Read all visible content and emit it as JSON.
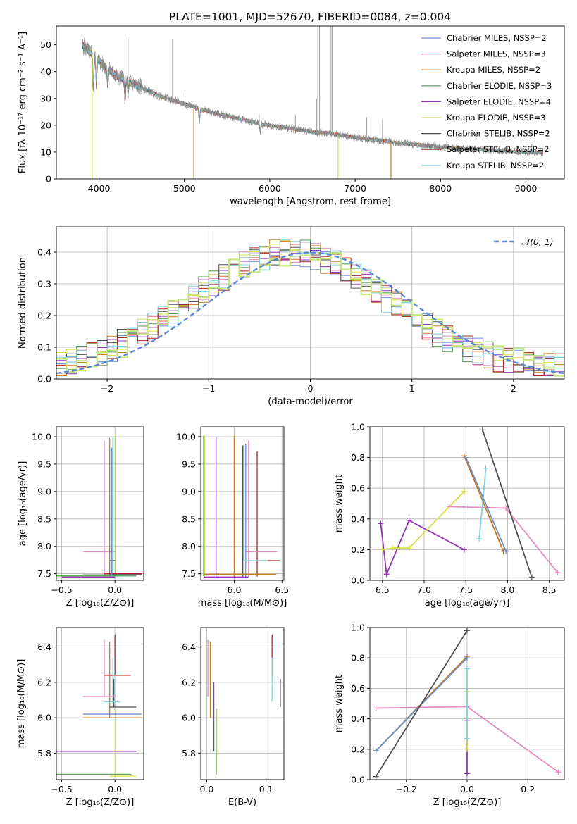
{
  "figure_title": "PLATE=1001, MJD=52670, FIBERID=0084, z=0.004",
  "series_colors": [
    "#6a8fd0",
    "#e58cbf",
    "#c87a1e",
    "#4f9a4f",
    "#9233b4",
    "#d6e04a",
    "#505050",
    "#b22222",
    "#7fd3e0"
  ],
  "chart_data": [
    {
      "id": "spectrum",
      "type": "line",
      "xlabel": "wavelength [Angstrom, rest frame]",
      "ylabel": "Flux [fλ 10⁻¹⁷ erg cm⁻² s⁻¹ A⁻¹]",
      "xlim": [
        3500,
        9450
      ],
      "ylim": [
        0,
        57
      ],
      "xticks": [
        4000,
        5000,
        6000,
        7000,
        8000,
        9000
      ],
      "yticks": [
        0,
        10,
        20,
        30,
        40,
        50
      ],
      "grid": false,
      "legend_position": "upper right",
      "legend": [
        "Chabrier MILES, N_SSP=2",
        "Salpeter MILES, N_SSP=3",
        "Kroupa MILES, N_SSP=2",
        "Chabrier ELODIE, N_SSP=3",
        "Salpeter ELODIE, N_SSP=4",
        "Kroupa ELODIE, N_SSP=3",
        "Chabrier STELIB, N_SSP=2",
        "Salpeter STELIB, N_SSP=2",
        "Kroupa STELIB, N_SSP=2"
      ],
      "observed_color": "#8c8c8c",
      "continuum": {
        "x": [
          3800,
          3900,
          4000,
          4100,
          4200,
          4300,
          4500,
          4700,
          4900,
          5100,
          5300,
          5500,
          5700,
          5900,
          6100,
          6300,
          6500,
          6700,
          6900,
          7100,
          7300,
          7500,
          7800,
          8100,
          8400,
          8700,
          9000,
          9200
        ],
        "y": [
          50,
          47,
          44,
          41,
          38.5,
          37,
          34,
          31,
          29,
          27,
          25,
          23.5,
          22,
          20.5,
          19.5,
          18.5,
          17.5,
          17,
          16,
          15,
          14.3,
          13.5,
          12.5,
          11.5,
          11,
          10.5,
          10,
          9.8
        ]
      },
      "emission_lines": [
        [
          4340,
          53
        ],
        [
          4861,
          52
        ],
        [
          4959,
          27
        ],
        [
          5007,
          32
        ],
        [
          5876,
          24
        ],
        [
          6300,
          24
        ],
        [
          6548,
          30
        ],
        [
          6563,
          57
        ],
        [
          6583,
          57
        ],
        [
          6717,
          57
        ],
        [
          6731,
          57
        ],
        [
          7135,
          23
        ],
        [
          7320,
          22
        ],
        [
          9069,
          13
        ]
      ],
      "model_dropouts": [
        [
          3920,
          "#d6e04a"
        ],
        [
          5110,
          "#c87a1e"
        ],
        [
          6800,
          "#d6e04a"
        ],
        [
          7420,
          "#c87a1e"
        ]
      ]
    },
    {
      "id": "residuals",
      "type": "line",
      "xlabel": "(data-model)/error",
      "ylabel": "Normed distribution",
      "xlim": [
        -2.5,
        2.5
      ],
      "ylim": [
        0,
        0.48
      ],
      "xticks": [
        -2,
        -1,
        0,
        1,
        2
      ],
      "yticks": [
        0.0,
        0.1,
        0.2,
        0.3,
        0.4
      ],
      "grid": true,
      "legend_position": "upper right",
      "legend": [
        "𝒩(0, 1)"
      ],
      "reference_curve": {
        "mean": 0,
        "sigma": 1,
        "color": "#5b86d6",
        "style": "dashed"
      },
      "histogram": {
        "bin_width": 0.1,
        "x_start": -2.5,
        "highlight_color": "#c5e67a"
      }
    },
    {
      "id": "age_vs_Z",
      "type": "scatter",
      "xlabel": "Z [log₁₀(Z/Z⊙)]",
      "ylabel": "age  [log₁₀(age/yr)]",
      "xlim": [
        -0.55,
        0.27
      ],
      "ylim": [
        7.38,
        10.18
      ],
      "xticks": [
        -0.5,
        0.0
      ],
      "yticks": [
        7.5,
        8.0,
        8.5,
        9.0,
        9.5,
        10.0
      ],
      "grid": true,
      "segments": [
        {
          "c": 1,
          "x": [
            -0.1,
            -0.1
          ],
          "y": [
            7.45,
            9.93
          ]
        },
        {
          "c": 1,
          "x": [
            -0.3,
            0.0
          ],
          "y": [
            7.9,
            7.9
          ]
        },
        {
          "c": 2,
          "x": [
            -0.05,
            -0.05
          ],
          "y": [
            7.45,
            9.98
          ]
        },
        {
          "c": 8,
          "x": [
            -0.02,
            -0.02
          ],
          "y": [
            7.45,
            10.0
          ]
        },
        {
          "c": 7,
          "x": [
            0.0,
            0.0
          ],
          "y": [
            7.45,
            10.02
          ]
        },
        {
          "c": 5,
          "x": [
            0.0,
            0.0
          ],
          "y": [
            7.45,
            10.05
          ]
        },
        {
          "c": 0,
          "x": [
            -0.05,
            0.25
          ],
          "y": [
            7.49,
            7.49
          ]
        },
        {
          "c": 3,
          "x": [
            -0.55,
            0.2
          ],
          "y": [
            7.46,
            7.46
          ]
        },
        {
          "c": 4,
          "x": [
            -0.5,
            0.0
          ],
          "y": [
            7.44,
            7.44
          ]
        },
        {
          "c": 6,
          "x": [
            -0.3,
            0.25
          ],
          "y": [
            7.48,
            7.48
          ]
        },
        {
          "c": 7,
          "x": [
            -0.1,
            0.25
          ],
          "y": [
            7.5,
            7.5
          ]
        },
        {
          "c": 8,
          "x": [
            -0.05,
            0.0
          ],
          "y": [
            7.74,
            7.74
          ]
        },
        {
          "c": 6,
          "x": [
            -0.05,
            0.0
          ],
          "y": [
            7.74,
            7.74
          ]
        },
        {
          "c": 8,
          "x": [
            -0.02,
            -0.02
          ],
          "y": [
            7.75,
            9.85
          ]
        },
        {
          "c": 0,
          "x": [
            -0.03,
            -0.03
          ],
          "y": [
            7.45,
            9.8
          ]
        }
      ]
    },
    {
      "id": "age_vs_mass",
      "type": "scatter",
      "xlabel": "mass [log₁₀(M/M⊙)]",
      "ylabel": "",
      "xlim": [
        5.65,
        6.52
      ],
      "ylim": [
        7.38,
        10.18
      ],
      "xticks": [
        6.0,
        6.5
      ],
      "yticks": [
        7.5,
        8.0,
        8.5,
        9.0,
        9.5,
        10.0
      ],
      "grid": true,
      "segments": [
        {
          "c": 4,
          "x": [
            5.81,
            5.81
          ],
          "y": [
            7.45,
            10.0
          ]
        },
        {
          "c": 3,
          "x": [
            5.68,
            5.68
          ],
          "y": [
            7.45,
            10.02
          ]
        },
        {
          "c": 5,
          "x": [
            5.69,
            5.69
          ],
          "y": [
            7.45,
            10.02
          ]
        },
        {
          "c": 2,
          "x": [
            6.0,
            6.0
          ],
          "y": [
            7.45,
            10.02
          ]
        },
        {
          "c": 6,
          "x": [
            6.09,
            6.09
          ],
          "y": [
            7.45,
            9.84
          ]
        },
        {
          "c": 0,
          "x": [
            6.12,
            6.12
          ],
          "y": [
            7.45,
            9.87
          ]
        },
        {
          "c": 1,
          "x": [
            6.15,
            6.15
          ],
          "y": [
            7.45,
            9.93
          ]
        },
        {
          "c": 7,
          "x": [
            6.24,
            6.24
          ],
          "y": [
            7.45,
            9.73
          ]
        },
        {
          "c": 8,
          "x": [
            6.1,
            6.1
          ],
          "y": [
            7.74,
            9.85
          ]
        },
        {
          "c": 1,
          "x": [
            6.12,
            6.45
          ],
          "y": [
            7.9,
            7.9
          ]
        },
        {
          "c": 7,
          "x": [
            6.24,
            6.48
          ],
          "y": [
            7.74,
            7.74
          ]
        },
        {
          "c": 2,
          "x": [
            5.68,
            6.44
          ],
          "y": [
            7.49,
            7.49
          ]
        },
        {
          "c": 4,
          "x": [
            5.68,
            6.15
          ],
          "y": [
            7.44,
            7.44
          ]
        },
        {
          "c": 8,
          "x": [
            6.1,
            6.35
          ],
          "y": [
            7.74,
            7.74
          ]
        }
      ]
    },
    {
      "id": "weight_vs_age",
      "type": "line",
      "xlabel": "age  [log₁₀(age/yr)]",
      "ylabel": "mass weight",
      "xlim": [
        6.35,
        8.68
      ],
      "ylim": [
        0.0,
        1.0
      ],
      "xticks": [
        6.5,
        7.0,
        7.5,
        8.0,
        8.5
      ],
      "yticks": [
        0.0,
        0.2,
        0.4,
        0.6,
        0.8,
        1.0
      ],
      "grid": true,
      "series": [
        {
          "c": 4,
          "x": [
            6.48,
            6.55,
            6.82,
            7.48
          ],
          "y": [
            0.37,
            0.04,
            0.39,
            0.2
          ]
        },
        {
          "c": 5,
          "x": [
            6.5,
            6.62,
            6.82,
            7.48
          ],
          "y": [
            0.2,
            0.21,
            0.21,
            0.58
          ]
        },
        {
          "c": 1,
          "x": [
            7.3,
            7.98,
            8.6
          ],
          "y": [
            0.48,
            0.47,
            0.05
          ]
        },
        {
          "c": 2,
          "x": [
            7.48,
            7.95
          ],
          "y": [
            0.81,
            0.19
          ]
        },
        {
          "c": 0,
          "x": [
            7.5,
            7.98
          ],
          "y": [
            0.8,
            0.19
          ]
        },
        {
          "c": 6,
          "x": [
            7.7,
            8.29
          ],
          "y": [
            0.98,
            0.02
          ]
        },
        {
          "c": 8,
          "x": [
            7.66,
            7.74
          ],
          "y": [
            0.27,
            0.73
          ]
        }
      ]
    },
    {
      "id": "mass_vs_Z",
      "type": "scatter",
      "xlabel": "Z [log₁₀(Z/Z⊙)]",
      "ylabel": "mass [log₁₀(M/M⊙)]",
      "xlim": [
        -0.55,
        0.27
      ],
      "ylim": [
        5.65,
        6.51
      ],
      "xticks": [
        -0.5,
        0.0
      ],
      "yticks": [
        5.8,
        6.0,
        6.2,
        6.4
      ],
      "grid": true,
      "segments": [
        {
          "c": 1,
          "x": [
            -0.1,
            -0.1
          ],
          "y": [
            6.12,
            6.44
          ]
        },
        {
          "c": 2,
          "x": [
            -0.05,
            -0.05
          ],
          "y": [
            6.0,
            6.43
          ]
        },
        {
          "c": 7,
          "x": [
            0.0,
            0.0
          ],
          "y": [
            6.24,
            6.47
          ]
        },
        {
          "c": 8,
          "x": [
            -0.02,
            -0.02
          ],
          "y": [
            6.08,
            6.34
          ]
        },
        {
          "c": 6,
          "x": [
            -0.01,
            -0.01
          ],
          "y": [
            6.06,
            6.22
          ]
        },
        {
          "c": 5,
          "x": [
            0.0,
            0.0
          ],
          "y": [
            5.67,
            6.05
          ]
        },
        {
          "c": 7,
          "x": [
            -0.1,
            0.15
          ],
          "y": [
            6.24,
            6.24
          ]
        },
        {
          "c": 1,
          "x": [
            -0.3,
            0.0
          ],
          "y": [
            6.12,
            6.12
          ]
        },
        {
          "c": 8,
          "x": [
            -0.1,
            0.05
          ],
          "y": [
            6.09,
            6.09
          ]
        },
        {
          "c": 6,
          "x": [
            -0.05,
            0.2
          ],
          "y": [
            6.06,
            6.06
          ]
        },
        {
          "c": 0,
          "x": [
            -0.3,
            0.25
          ],
          "y": [
            6.02,
            6.02
          ]
        },
        {
          "c": 2,
          "x": [
            -0.3,
            0.25
          ],
          "y": [
            6.0,
            6.0
          ]
        },
        {
          "c": 4,
          "x": [
            -0.55,
            0.2
          ],
          "y": [
            5.81,
            5.81
          ]
        },
        {
          "c": 3,
          "x": [
            -0.55,
            0.15
          ],
          "y": [
            5.68,
            5.68
          ]
        },
        {
          "c": 5,
          "x": [
            -0.05,
            0.2
          ],
          "y": [
            5.67,
            5.67
          ]
        }
      ]
    },
    {
      "id": "mass_vs_ebv",
      "type": "scatter",
      "xlabel": "E(B-V)",
      "ylabel": "",
      "xlim": [
        -0.01,
        0.13
      ],
      "ylim": [
        5.65,
        6.51
      ],
      "xticks": [
        0.0,
        0.1
      ],
      "yticks": [
        5.8,
        6.0,
        6.2,
        6.4
      ],
      "grid": true,
      "segments": [
        {
          "c": 1,
          "x": [
            0.002,
            0.002
          ],
          "y": [
            6.12,
            6.44
          ]
        },
        {
          "c": 2,
          "x": [
            0.006,
            0.006
          ],
          "y": [
            6.0,
            6.43
          ]
        },
        {
          "c": 4,
          "x": [
            0.012,
            0.012
          ],
          "y": [
            5.81,
            6.2
          ]
        },
        {
          "c": 3,
          "x": [
            0.016,
            0.016
          ],
          "y": [
            5.68,
            6.05
          ]
        },
        {
          "c": 5,
          "x": [
            0.019,
            0.019
          ],
          "y": [
            5.67,
            6.05
          ]
        },
        {
          "c": 7,
          "x": [
            0.11,
            0.11
          ],
          "y": [
            6.24,
            6.47
          ]
        },
        {
          "c": 8,
          "x": [
            0.11,
            0.11
          ],
          "y": [
            6.09,
            6.34
          ]
        },
        {
          "c": 6,
          "x": [
            0.124,
            0.124
          ],
          "y": [
            6.06,
            6.22
          ]
        }
      ]
    },
    {
      "id": "weight_vs_Z",
      "type": "line",
      "xlabel": "Z [log₁₀(Z/Z⊙)]",
      "ylabel": "mass weight",
      "xlim": [
        -0.32,
        0.32
      ],
      "ylim": [
        0.0,
        1.0
      ],
      "xticks": [
        -0.2,
        0.0,
        0.2
      ],
      "yticks": [
        0.0,
        0.2,
        0.4,
        0.6,
        0.8,
        1.0
      ],
      "grid": true,
      "series": [
        {
          "c": 1,
          "x": [
            -0.3,
            0.0,
            0.3
          ],
          "y": [
            0.47,
            0.48,
            0.05
          ]
        },
        {
          "c": 2,
          "x": [
            -0.3,
            0.0
          ],
          "y": [
            0.19,
            0.81
          ]
        },
        {
          "c": 0,
          "x": [
            -0.3,
            0.0
          ],
          "y": [
            0.19,
            0.8
          ]
        },
        {
          "c": 6,
          "x": [
            -0.3,
            0.0
          ],
          "y": [
            0.02,
            0.98
          ]
        },
        {
          "c": 4,
          "x": [
            0.0,
            0.0
          ],
          "y": [
            0.04,
            0.39
          ]
        },
        {
          "c": 5,
          "x": [
            0.0,
            0.0
          ],
          "y": [
            0.2,
            0.58
          ]
        },
        {
          "c": 8,
          "x": [
            0.0,
            0.0
          ],
          "y": [
            0.27,
            0.73
          ]
        }
      ]
    }
  ]
}
